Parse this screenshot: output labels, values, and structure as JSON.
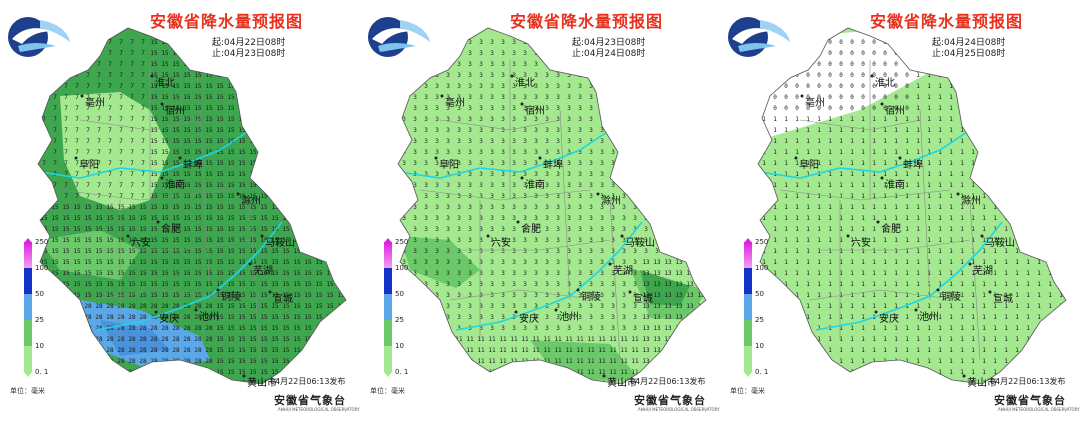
{
  "colors": {
    "level_0_1": "#c8f5b8",
    "level_10": "#a4e890",
    "level_25": "#6cc96a",
    "level_dark": "#3fa650",
    "level_50": "#5ba8e8",
    "level_100": "#1532c8",
    "level_250": "#e020e0",
    "river": "#18d8e8",
    "title": "#e8301e"
  },
  "legend": {
    "ticks": [
      "250",
      "100",
      "50",
      "25",
      "10",
      "0. 1"
    ],
    "unit": "单位：毫米"
  },
  "panels": [
    {
      "title": "安徽省降水量预报图",
      "start": "起:04月22日08时",
      "end": "止:04月23日08时",
      "issued": "04月22日06:13发布",
      "agency": "安徽省气象台",
      "agency_en": "ANHUI METEOROLOGICAL OBSERVATORY",
      "cities": [
        "淮北",
        "宿州",
        "亳州",
        "阜阳",
        "蚌埠",
        "淮南",
        "滁州",
        "合肥",
        "六安",
        "马鞍山",
        "芜湖",
        "铜陵",
        "宣城",
        "安庆",
        "池州",
        "黄山市"
      ],
      "max_level": "50"
    },
    {
      "title": "安徽省降水量预报图",
      "start": "起:04月23日08时",
      "end": "止:04月24日08时",
      "issued": "04月22日06:13发布",
      "agency": "安徽省气象台",
      "agency_en": "ANHUI METEOROLOGICAL OBSERVATORY",
      "cities": [
        "淮北",
        "宿州",
        "亳州",
        "阜阳",
        "蚌埠",
        "淮南",
        "滁州",
        "合肥",
        "六安",
        "马鞍山",
        "芜湖",
        "铜陵",
        "宣城",
        "安庆",
        "池州",
        "黄山市"
      ],
      "max_level": "10"
    },
    {
      "title": "安徽省降水量预报图",
      "start": "起:04月24日08时",
      "end": "止:04月25日08时",
      "issued": "04月22日06:13发布",
      "agency": "安徽省气象台",
      "agency_en": "ANHUI METEOROLOGICAL OBSERVATORY",
      "cities": [
        "淮北",
        "宿州",
        "亳州",
        "阜阳",
        "蚌埠",
        "淮南",
        "滁州",
        "合肥",
        "六安",
        "马鞍山",
        "芜湖",
        "铜陵",
        "宣城",
        "安庆",
        "池州",
        "黄山市"
      ],
      "max_level": "0.1"
    }
  ]
}
